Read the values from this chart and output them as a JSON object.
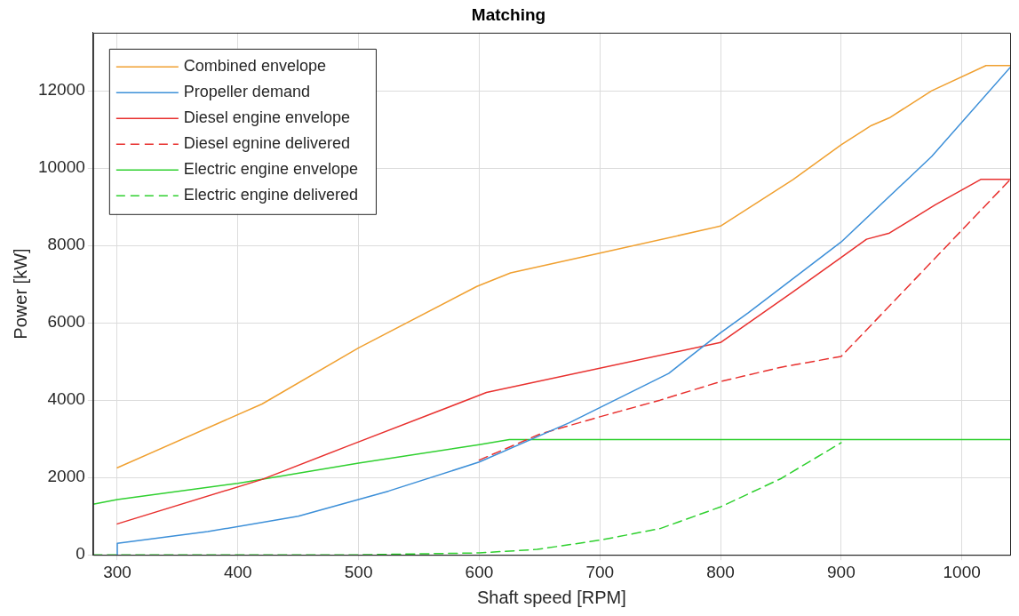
{
  "chart_data": {
    "type": "line",
    "title": "Matching",
    "xlabel": "Shaft speed [RPM]",
    "ylabel": "Power [kW]",
    "xlim": [
      280,
      1040
    ],
    "xticks": [
      300,
      400,
      500,
      600,
      700,
      800,
      900,
      1000
    ],
    "ylim": [
      0,
      13500
    ],
    "yticks": [
      0,
      2000,
      4000,
      6000,
      8000,
      10000,
      12000
    ],
    "grid": true,
    "legend": "top left",
    "marker": "none",
    "series": [
      {
        "name": "Combined envelope",
        "color": "#f0a030",
        "line_style": "solid",
        "x": [
          300,
          420,
          500,
          598,
          626,
          700,
          800,
          860,
          900,
          925,
          940,
          975,
          1020,
          1040
        ],
        "values": [
          2250,
          3900,
          5350,
          6940,
          7290,
          7800,
          8500,
          9700,
          10600,
          11100,
          11300,
          12000,
          12650,
          12650
        ]
      },
      {
        "name": "Propeller demand",
        "color": "#3c8fd8",
        "line_style": "solid",
        "x": [
          300,
          300,
          375,
          450,
          525,
          600,
          675,
          757,
          800,
          823,
          900,
          975,
          1040
        ],
        "values": [
          0,
          300,
          600,
          1000,
          1650,
          2400,
          3420,
          4690,
          5740,
          6260,
          8090,
          10300,
          12600
        ]
      },
      {
        "name": "Diesel engine envelope",
        "color": "#e8302e",
        "line_style": "solid",
        "x": [
          300,
          420,
          490,
          598,
          606,
          800,
          860,
          900,
          921,
          940,
          978,
          1016,
          1040
        ],
        "values": [
          800,
          1950,
          2800,
          4100,
          4200,
          5490,
          6800,
          7690,
          8160,
          8320,
          9050,
          9710,
          9710
        ]
      },
      {
        "name": "Diesel egnine delivered",
        "color": "#e8302e",
        "line_style": "dashed",
        "x": [
          600,
          650,
          700,
          750,
          800,
          850,
          900,
          1040
        ],
        "values": [
          2450,
          3120,
          3570,
          4000,
          4480,
          4850,
          5130,
          9700
        ]
      },
      {
        "name": "Electric engine envelope",
        "color": "#2fd02f",
        "line_style": "solid",
        "x": [
          280,
          300,
          400,
          500,
          600,
          625,
          1040
        ],
        "values": [
          1310,
          1430,
          1850,
          2370,
          2850,
          2980,
          2980
        ]
      },
      {
        "name": "Electric engine delivered",
        "color": "#2fd02f",
        "line_style": "dashed",
        "x": [
          280,
          400,
          500,
          600,
          648,
          700,
          750,
          800,
          850,
          900
        ],
        "values": [
          0,
          0,
          0,
          50,
          140,
          380,
          680,
          1240,
          1970,
          2900
        ]
      }
    ]
  }
}
